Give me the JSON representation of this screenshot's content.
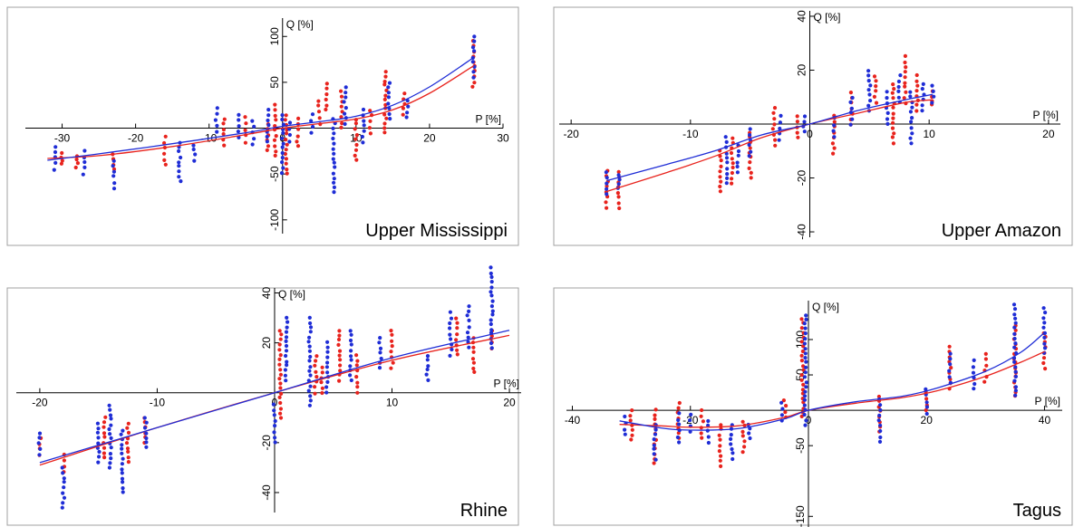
{
  "chart_data": [
    {
      "type": "scatter",
      "title": "Upper Mississippi",
      "xlabel": "P [%]",
      "ylabel": "Q [%]",
      "xlim": [
        -35,
        30
      ],
      "ylim": [
        -115,
        120
      ],
      "xticks": [
        -30,
        -20,
        -10,
        0,
        10,
        20,
        30
      ],
      "yticks": [
        -100,
        -50,
        0,
        50,
        100
      ],
      "ylabel_rotated": true,
      "colors": {
        "red": "#e8231d",
        "blue": "#1f2dd6"
      },
      "series": [
        {
          "color": "red",
          "columns": [
            {
              "x": -30,
              "ymin": -38,
              "ymax": -28
            },
            {
              "x": -28,
              "ymin": -42,
              "ymax": -30
            },
            {
              "x": -23,
              "ymin": -45,
              "ymax": -28
            },
            {
              "x": -16,
              "ymin": -40,
              "ymax": -10
            },
            {
              "x": -8,
              "ymin": -18,
              "ymax": 10
            },
            {
              "x": -5,
              "ymin": -15,
              "ymax": 12
            },
            {
              "x": -2,
              "ymin": -25,
              "ymax": 5
            },
            {
              "x": -1,
              "ymin": -30,
              "ymax": 25
            },
            {
              "x": 0.5,
              "ymin": -50,
              "ymax": 15
            },
            {
              "x": 2,
              "ymin": -20,
              "ymax": 10
            },
            {
              "x": 5,
              "ymin": 5,
              "ymax": 30
            },
            {
              "x": 6,
              "ymin": 20,
              "ymax": 48
            },
            {
              "x": 8,
              "ymin": 0,
              "ymax": 40
            },
            {
              "x": 10,
              "ymin": -35,
              "ymax": 10
            },
            {
              "x": 12,
              "ymin": -5,
              "ymax": 20
            },
            {
              "x": 14,
              "ymin": -5,
              "ymax": 62
            },
            {
              "x": 16.5,
              "ymin": 15,
              "ymax": 38
            },
            {
              "x": 26,
              "ymin": 45,
              "ymax": 95
            }
          ]
        },
        {
          "color": "blue",
          "columns": [
            {
              "x": -31,
              "ymin": -45,
              "ymax": -20
            },
            {
              "x": -27,
              "ymin": -50,
              "ymax": -25
            },
            {
              "x": -23,
              "ymin": -65,
              "ymax": -35
            },
            {
              "x": -14,
              "ymin": -58,
              "ymax": -15
            },
            {
              "x": -12,
              "ymin": -35,
              "ymax": -18
            },
            {
              "x": -9,
              "ymin": -5,
              "ymax": 22
            },
            {
              "x": -6,
              "ymin": -10,
              "ymax": 15
            },
            {
              "x": -4,
              "ymin": -18,
              "ymax": 8
            },
            {
              "x": -2,
              "ymin": -15,
              "ymax": 20
            },
            {
              "x": 0,
              "ymin": -48,
              "ymax": 15
            },
            {
              "x": 1,
              "ymin": -15,
              "ymax": 5
            },
            {
              "x": 4,
              "ymin": -5,
              "ymax": 15
            },
            {
              "x": 7,
              "ymin": -70,
              "ymax": 10
            },
            {
              "x": 8.5,
              "ymin": 5,
              "ymax": 45
            },
            {
              "x": 11,
              "ymin": -15,
              "ymax": 20
            },
            {
              "x": 14.5,
              "ymin": 10,
              "ymax": 50
            },
            {
              "x": 17,
              "ymin": 12,
              "ymax": 30
            },
            {
              "x": 26,
              "ymin": 55,
              "ymax": 100
            }
          ]
        }
      ],
      "curves": [
        {
          "color": "red",
          "x": [
            -32,
            -25,
            -15,
            -5,
            0,
            5,
            10,
            15,
            20,
            26
          ],
          "y": [
            -33,
            -30,
            -20,
            -7,
            0,
            5,
            10,
            20,
            38,
            68
          ]
        },
        {
          "color": "blue",
          "x": [
            -32,
            -25,
            -15,
            -5,
            0,
            5,
            10,
            15,
            20,
            26
          ],
          "y": [
            -35,
            -28,
            -17,
            -5,
            2,
            7,
            13,
            25,
            45,
            77
          ]
        }
      ]
    },
    {
      "type": "scatter",
      "title": "Upper Amazon",
      "xlabel": "P [%]",
      "ylabel": "Q [%]",
      "xlim": [
        -21,
        21
      ],
      "ylim": [
        -42,
        42
      ],
      "xticks": [
        -20,
        -10,
        0,
        10,
        20
      ],
      "yticks": [
        -40,
        -20,
        0,
        20,
        40
      ],
      "ylabel_rotated": true,
      "colors": {
        "red": "#e8231d",
        "blue": "#1f2dd6"
      },
      "series": [
        {
          "color": "red",
          "columns": [
            {
              "x": -17,
              "ymin": -31,
              "ymax": -17
            },
            {
              "x": -16,
              "ymin": -31,
              "ymax": -18
            },
            {
              "x": -7.5,
              "ymin": -25,
              "ymax": -10
            },
            {
              "x": -6.5,
              "ymin": -22,
              "ymax": -5
            },
            {
              "x": -5,
              "ymin": -20,
              "ymax": -3
            },
            {
              "x": -3,
              "ymin": -8,
              "ymax": 6
            },
            {
              "x": -1,
              "ymin": -5,
              "ymax": 3
            },
            {
              "x": 2,
              "ymin": -11,
              "ymax": 3
            },
            {
              "x": 3.5,
              "ymin": 0,
              "ymax": 12
            },
            {
              "x": 5.5,
              "ymin": 8,
              "ymax": 18
            },
            {
              "x": 7,
              "ymin": -7,
              "ymax": 15
            },
            {
              "x": 8,
              "ymin": 8,
              "ymax": 25
            },
            {
              "x": 9,
              "ymin": 5,
              "ymax": 18
            },
            {
              "x": 10.3,
              "ymin": 7,
              "ymax": 12
            }
          ]
        },
        {
          "color": "blue",
          "columns": [
            {
              "x": -17,
              "ymin": -26,
              "ymax": -18
            },
            {
              "x": -16,
              "ymin": -24,
              "ymax": -19
            },
            {
              "x": -7,
              "ymin": -22,
              "ymax": -5
            },
            {
              "x": -6,
              "ymin": -18,
              "ymax": -8
            },
            {
              "x": -5,
              "ymin": -12,
              "ymax": -2
            },
            {
              "x": -2.5,
              "ymin": -6,
              "ymax": 3
            },
            {
              "x": -0.5,
              "ymin": -3,
              "ymax": 3
            },
            {
              "x": 2,
              "ymin": -5,
              "ymax": 2
            },
            {
              "x": 3.5,
              "ymin": 0,
              "ymax": 10
            },
            {
              "x": 5,
              "ymin": 5,
              "ymax": 20
            },
            {
              "x": 6.5,
              "ymin": 0,
              "ymax": 12
            },
            {
              "x": 7.5,
              "ymin": 8,
              "ymax": 18
            },
            {
              "x": 8.5,
              "ymin": -7,
              "ymax": 12
            },
            {
              "x": 9.5,
              "ymin": 5,
              "ymax": 15
            },
            {
              "x": 10.3,
              "ymin": 8,
              "ymax": 14
            }
          ]
        }
      ],
      "curves": [
        {
          "color": "red",
          "x": [
            -17,
            -12,
            -8,
            -4,
            0,
            4,
            8,
            10.3
          ],
          "y": [
            -25,
            -18,
            -12,
            -5,
            0,
            4,
            8,
            9
          ]
        },
        {
          "color": "blue",
          "x": [
            -17,
            -12,
            -8,
            -4,
            0,
            4,
            8,
            10.3
          ],
          "y": [
            -21,
            -15,
            -10,
            -4,
            0,
            5,
            9,
            11
          ]
        }
      ]
    },
    {
      "type": "scatter",
      "title": "Rhine",
      "xlabel": "P [%]",
      "ylabel": "Q [%]",
      "xlim": [
        -22,
        21
      ],
      "ylim": [
        -48,
        42
      ],
      "xticks": [
        -20,
        -10,
        0,
        10,
        20
      ],
      "yticks": [
        -40,
        -20,
        0,
        20,
        40
      ],
      "ylabel_rotated": true,
      "colors": {
        "red": "#e8231d",
        "blue": "#1f2dd6"
      },
      "series": [
        {
          "color": "red",
          "columns": [
            {
              "x": -20,
              "ymin": -25,
              "ymax": -18
            },
            {
              "x": -18,
              "ymin": -32,
              "ymax": -25
            },
            {
              "x": -14.5,
              "ymin": -26,
              "ymax": -10
            },
            {
              "x": -12.5,
              "ymin": -28,
              "ymax": -12
            },
            {
              "x": -11,
              "ymin": -20,
              "ymax": -10
            },
            {
              "x": 0.5,
              "ymin": -10,
              "ymax": 25
            },
            {
              "x": 3.5,
              "ymin": 0,
              "ymax": 15
            },
            {
              "x": 4,
              "ymin": 0,
              "ymax": 10
            },
            {
              "x": 5.5,
              "ymin": 5,
              "ymax": 25
            },
            {
              "x": 7,
              "ymin": 0,
              "ymax": 15
            },
            {
              "x": 10,
              "ymin": 10,
              "ymax": 25
            },
            {
              "x": 15.5,
              "ymin": 15,
              "ymax": 30
            },
            {
              "x": 17,
              "ymin": 8,
              "ymax": 22
            },
            {
              "x": 18.5,
              "ymin": 18,
              "ymax": 25
            }
          ]
        },
        {
          "color": "blue",
          "columns": [
            {
              "x": -20,
              "ymin": -25,
              "ymax": -16
            },
            {
              "x": -18,
              "ymin": -46,
              "ymax": -30
            },
            {
              "x": -15,
              "ymin": -28,
              "ymax": -12
            },
            {
              "x": -14,
              "ymin": -30,
              "ymax": -5
            },
            {
              "x": -13,
              "ymin": -40,
              "ymax": -15
            },
            {
              "x": -11,
              "ymin": -22,
              "ymax": -10
            },
            {
              "x": 0,
              "ymin": -20,
              "ymax": -5
            },
            {
              "x": 1,
              "ymin": 5,
              "ymax": 30
            },
            {
              "x": 3,
              "ymin": -5,
              "ymax": 30
            },
            {
              "x": 4.5,
              "ymin": 0,
              "ymax": 20
            },
            {
              "x": 6.5,
              "ymin": 5,
              "ymax": 25
            },
            {
              "x": 9,
              "ymin": 10,
              "ymax": 22
            },
            {
              "x": 13,
              "ymin": 5,
              "ymax": 15
            },
            {
              "x": 15,
              "ymin": 15,
              "ymax": 32
            },
            {
              "x": 16.5,
              "ymin": 18,
              "ymax": 35
            },
            {
              "x": 18.5,
              "ymin": 18,
              "ymax": 50
            }
          ]
        }
      ],
      "curves": [
        {
          "color": "red",
          "x": [
            -20,
            -10,
            0,
            10,
            20
          ],
          "y": [
            -29,
            -14,
            0,
            13,
            23
          ]
        },
        {
          "color": "blue",
          "x": [
            -20,
            -10,
            0,
            10,
            20
          ],
          "y": [
            -28,
            -14,
            0,
            14,
            25
          ]
        }
      ]
    },
    {
      "type": "scatter",
      "title": "Tagus",
      "xlabel": "P [%]",
      "ylabel": "Q [%]",
      "xlim": [
        -41,
        43
      ],
      "ylim": [
        -165,
        155
      ],
      "xticks": [
        -40,
        -20,
        0,
        20,
        40
      ],
      "yticks": [
        -150,
        -50,
        0,
        50,
        100
      ],
      "ylabel_rotated": true,
      "colors": {
        "red": "#e8231d",
        "blue": "#1f2dd6"
      },
      "series": [
        {
          "color": "red",
          "columns": [
            {
              "x": -30,
              "ymin": -42,
              "ymax": 0
            },
            {
              "x": -26,
              "ymin": -75,
              "ymax": 0
            },
            {
              "x": -22,
              "ymin": -40,
              "ymax": 10
            },
            {
              "x": -18,
              "ymin": -40,
              "ymax": 0
            },
            {
              "x": -15,
              "ymin": -80,
              "ymax": -20
            },
            {
              "x": -11,
              "ymin": -60,
              "ymax": -15
            },
            {
              "x": -4,
              "ymin": -10,
              "ymax": 15
            },
            {
              "x": -1,
              "ymin": -10,
              "ymax": 130
            },
            {
              "x": 12,
              "ymin": -30,
              "ymax": 20
            },
            {
              "x": 20,
              "ymin": 0,
              "ymax": 25
            },
            {
              "x": 24,
              "ymin": 30,
              "ymax": 90
            },
            {
              "x": 30,
              "ymin": 40,
              "ymax": 80
            },
            {
              "x": 35,
              "ymin": 20,
              "ymax": 120
            },
            {
              "x": 40,
              "ymin": 60,
              "ymax": 110
            }
          ]
        },
        {
          "color": "blue",
          "columns": [
            {
              "x": -31,
              "ymin": -35,
              "ymax": -10
            },
            {
              "x": -26,
              "ymin": -70,
              "ymax": -20
            },
            {
              "x": -22,
              "ymin": -45,
              "ymax": -5
            },
            {
              "x": -20,
              "ymin": -30,
              "ymax": -5
            },
            {
              "x": -17,
              "ymin": -45,
              "ymax": -15
            },
            {
              "x": -13,
              "ymin": -68,
              "ymax": -20
            },
            {
              "x": -10,
              "ymin": -40,
              "ymax": -20
            },
            {
              "x": -4.5,
              "ymin": -15,
              "ymax": 10
            },
            {
              "x": -0.5,
              "ymin": -20,
              "ymax": 135
            },
            {
              "x": 12,
              "ymin": -45,
              "ymax": 15
            },
            {
              "x": 20,
              "ymin": -5,
              "ymax": 30
            },
            {
              "x": 24,
              "ymin": 40,
              "ymax": 80
            },
            {
              "x": 28,
              "ymin": 30,
              "ymax": 70
            },
            {
              "x": 35,
              "ymin": 20,
              "ymax": 150
            },
            {
              "x": 40,
              "ymin": 80,
              "ymax": 145
            }
          ]
        }
      ],
      "curves": [
        {
          "color": "red",
          "x": [
            -32,
            -25,
            -20,
            -12,
            -4,
            0,
            8,
            16,
            22,
            30,
            36,
            40
          ],
          "y": [
            -20,
            -22,
            -24,
            -22,
            -10,
            0,
            10,
            18,
            28,
            48,
            68,
            83
          ]
        },
        {
          "color": "blue",
          "x": [
            -32,
            -25,
            -20,
            -12,
            -4,
            0,
            8,
            16,
            22,
            30,
            36,
            40
          ],
          "y": [
            -15,
            -25,
            -28,
            -26,
            -12,
            0,
            12,
            20,
            32,
            55,
            82,
            110
          ]
        }
      ]
    }
  ]
}
